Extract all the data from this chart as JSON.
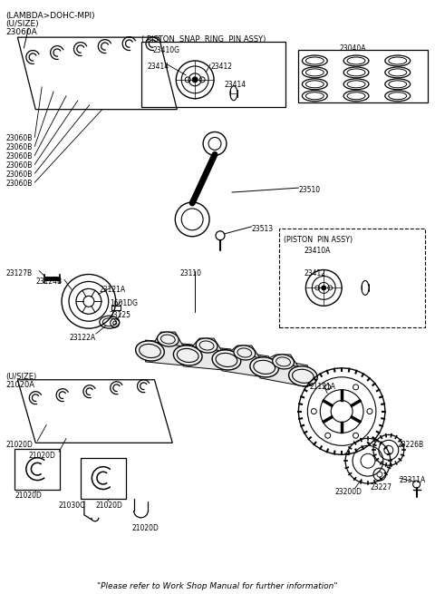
{
  "bg_color": "#ffffff",
  "fig_width": 4.8,
  "fig_height": 6.55,
  "dpi": 100,
  "header_line1": "(LAMBDA>DOHC-MPI)",
  "header_line2": "(U/SIZE)",
  "header_line3": "23060A",
  "footer": "\"Please refer to Work Shop Manual for further information\""
}
